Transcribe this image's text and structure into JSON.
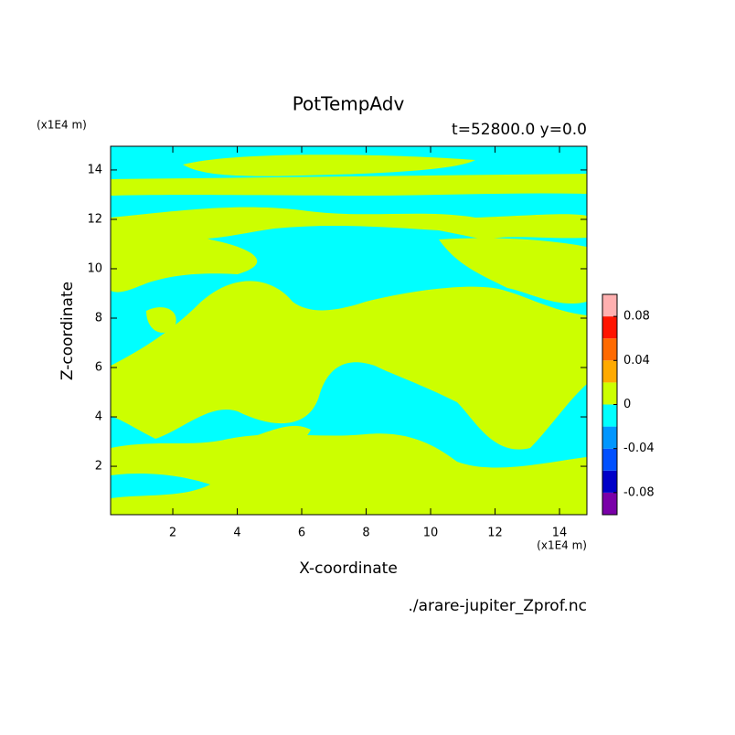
{
  "chart_data": {
    "type": "contour",
    "title": "PotTempAdv",
    "subtitle": "t=52800.0 y=0.0",
    "x_label": "X-coordinate",
    "y_label": "Z-coordinate",
    "x_unit": "(x1E4 m)",
    "y_unit": "(x1E4 m)",
    "source": "./arare-jupiter_Zprof.nc",
    "xlim": [
      0.07,
      14.85
    ],
    "ylim": [
      0.04,
      14.96
    ],
    "xticks": [
      2,
      4,
      6,
      8,
      10,
      12,
      14
    ],
    "yticks": [
      2,
      4,
      6,
      8,
      10,
      12,
      14
    ],
    "levels": [
      -0.1,
      -0.08,
      -0.06,
      -0.04,
      -0.02,
      0,
      0.02,
      0.04,
      0.06,
      0.08,
      0.1
    ],
    "colors": [
      "#7a00a8",
      "#0000c8",
      "#0050ff",
      "#0096ff",
      "#00ffff",
      "#ccff00",
      "#ffaa00",
      "#ff6a00",
      "#ff1400",
      "#ffb0b0"
    ],
    "colorbar_ticks": [
      -0.08,
      -0.04,
      0,
      0.04,
      0.08
    ]
  }
}
